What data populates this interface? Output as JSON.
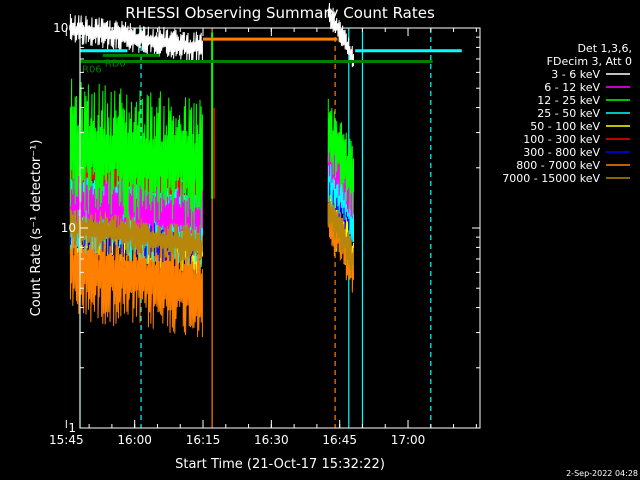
{
  "chart_data": {
    "type": "line",
    "title": "RHESSI Observing Summary Count Rates",
    "xlabel": "Start Time (21-Oct-17 15:32:22)",
    "ylabel": "Count Rate (s⁻¹ detector⁻¹)",
    "y_scale": "log",
    "ylim": [
      1,
      100
    ],
    "xlim_minutes": [
      15.6,
      103.4
    ],
    "y_ticks": [
      {
        "value": 1,
        "label": "1"
      },
      {
        "value": 10,
        "label": "10"
      },
      {
        "value": 100,
        "label": "100"
      }
    ],
    "x_ticks": [
      {
        "minutes": 12.6,
        "label": "15:45"
      },
      {
        "minutes": 27.6,
        "label": "16:00"
      },
      {
        "minutes": 42.6,
        "label": "16:15"
      },
      {
        "minutes": 57.6,
        "label": "16:30"
      },
      {
        "minutes": 72.6,
        "label": "16:45"
      },
      {
        "minutes": 87.6,
        "label": "17:00"
      }
    ],
    "legend_header": [
      "Det 1,3,6,",
      "FDecim 3, Att 0"
    ],
    "legend_placement": "right",
    "segments": [
      [
        13.5,
        42.6
      ],
      [
        70.1,
        75.8
      ]
    ],
    "series": [
      {
        "name": "3 - 6 keV",
        "color": "#ffffff",
        "segments": [
          {
            "level": 88,
            "spread": 0.06
          },
          {
            "level": 88,
            "spread": 0.05
          }
        ]
      },
      {
        "name": "6 - 12 keV",
        "color": "#ff00ff",
        "segments": [
          {
            "level": 12.5,
            "spread": 0.12
          },
          {
            "level": 17.5,
            "spread": 0.1
          }
        ]
      },
      {
        "name": "12 - 25 keV",
        "color": "#00ff00",
        "segments": [
          {
            "level": 23,
            "spread": 0.26
          },
          {
            "level": 22,
            "spread": 0.15
          }
        ]
      },
      {
        "name": "25 - 50 keV",
        "color": "#00ffff",
        "segments": [
          {
            "level": 13,
            "spread": 0.22
          },
          {
            "level": 14,
            "spread": 0.12
          }
        ]
      },
      {
        "name": "50 - 100 keV",
        "color": "#ffff00",
        "segments": [
          {
            "level": 9.5,
            "spread": 0.16
          },
          {
            "level": 9.2,
            "spread": 0.12
          }
        ]
      },
      {
        "name": "100 - 300 keV",
        "color": "#ff0000",
        "segments": [
          {
            "level": 17.5,
            "spread": 0.05
          },
          {
            "level": 19.5,
            "spread": 0.06
          }
        ]
      },
      {
        "name": "300 - 800 keV",
        "color": "#0000ff",
        "segments": [
          {
            "level": 10.5,
            "spread": 0.14
          },
          {
            "level": 13,
            "spread": 0.1
          }
        ]
      },
      {
        "name": "800 - 7000 keV",
        "color": "#ff8000",
        "segments": [
          {
            "level": 5.6,
            "spread": 0.2
          },
          {
            "level": 8.2,
            "spread": 0.12
          }
        ]
      },
      {
        "name": "7000 - 15000 keV",
        "color": "#b8860b",
        "segments": [
          {
            "level": 9.0,
            "spread": 0.08
          },
          {
            "level": 8.8,
            "spread": 0.08
          }
        ]
      }
    ],
    "flag_bars": [
      {
        "label": "",
        "color": "#00ffff",
        "y": 77,
        "spans": [
          [
            15.6,
            26.0
          ],
          [
            76.0,
            99.4
          ]
        ]
      },
      {
        "label": "RD0",
        "color": "#008000",
        "y": 73,
        "spans": [
          [
            20.6,
            33.0
          ]
        ]
      },
      {
        "label": "R06",
        "color": "#008000",
        "y": 68,
        "spans": [
          [
            15.6,
            93.0
          ]
        ]
      },
      {
        "label": "",
        "color": "#ff8000",
        "y": 88,
        "spans": [
          [
            42.6,
            72.1
          ]
        ]
      }
    ],
    "vlines": [
      {
        "minutes": 15.6,
        "color": "#00ffff",
        "style": "solid"
      },
      {
        "minutes": 29.0,
        "color": "#00ffff",
        "style": "dashed"
      },
      {
        "minutes": 44.6,
        "color": "#ff8000",
        "style": "solid"
      },
      {
        "minutes": 71.6,
        "color": "#ff8000",
        "style": "dashed"
      },
      {
        "minutes": 74.6,
        "color": "#00ffff",
        "style": "solid"
      },
      {
        "minutes": 77.6,
        "color": "#00ffff",
        "style": "solid"
      },
      {
        "minutes": 92.6,
        "color": "#00ffff",
        "style": "dashed"
      }
    ]
  },
  "footer": {
    "date": "2-Sep-2022 04:28"
  }
}
